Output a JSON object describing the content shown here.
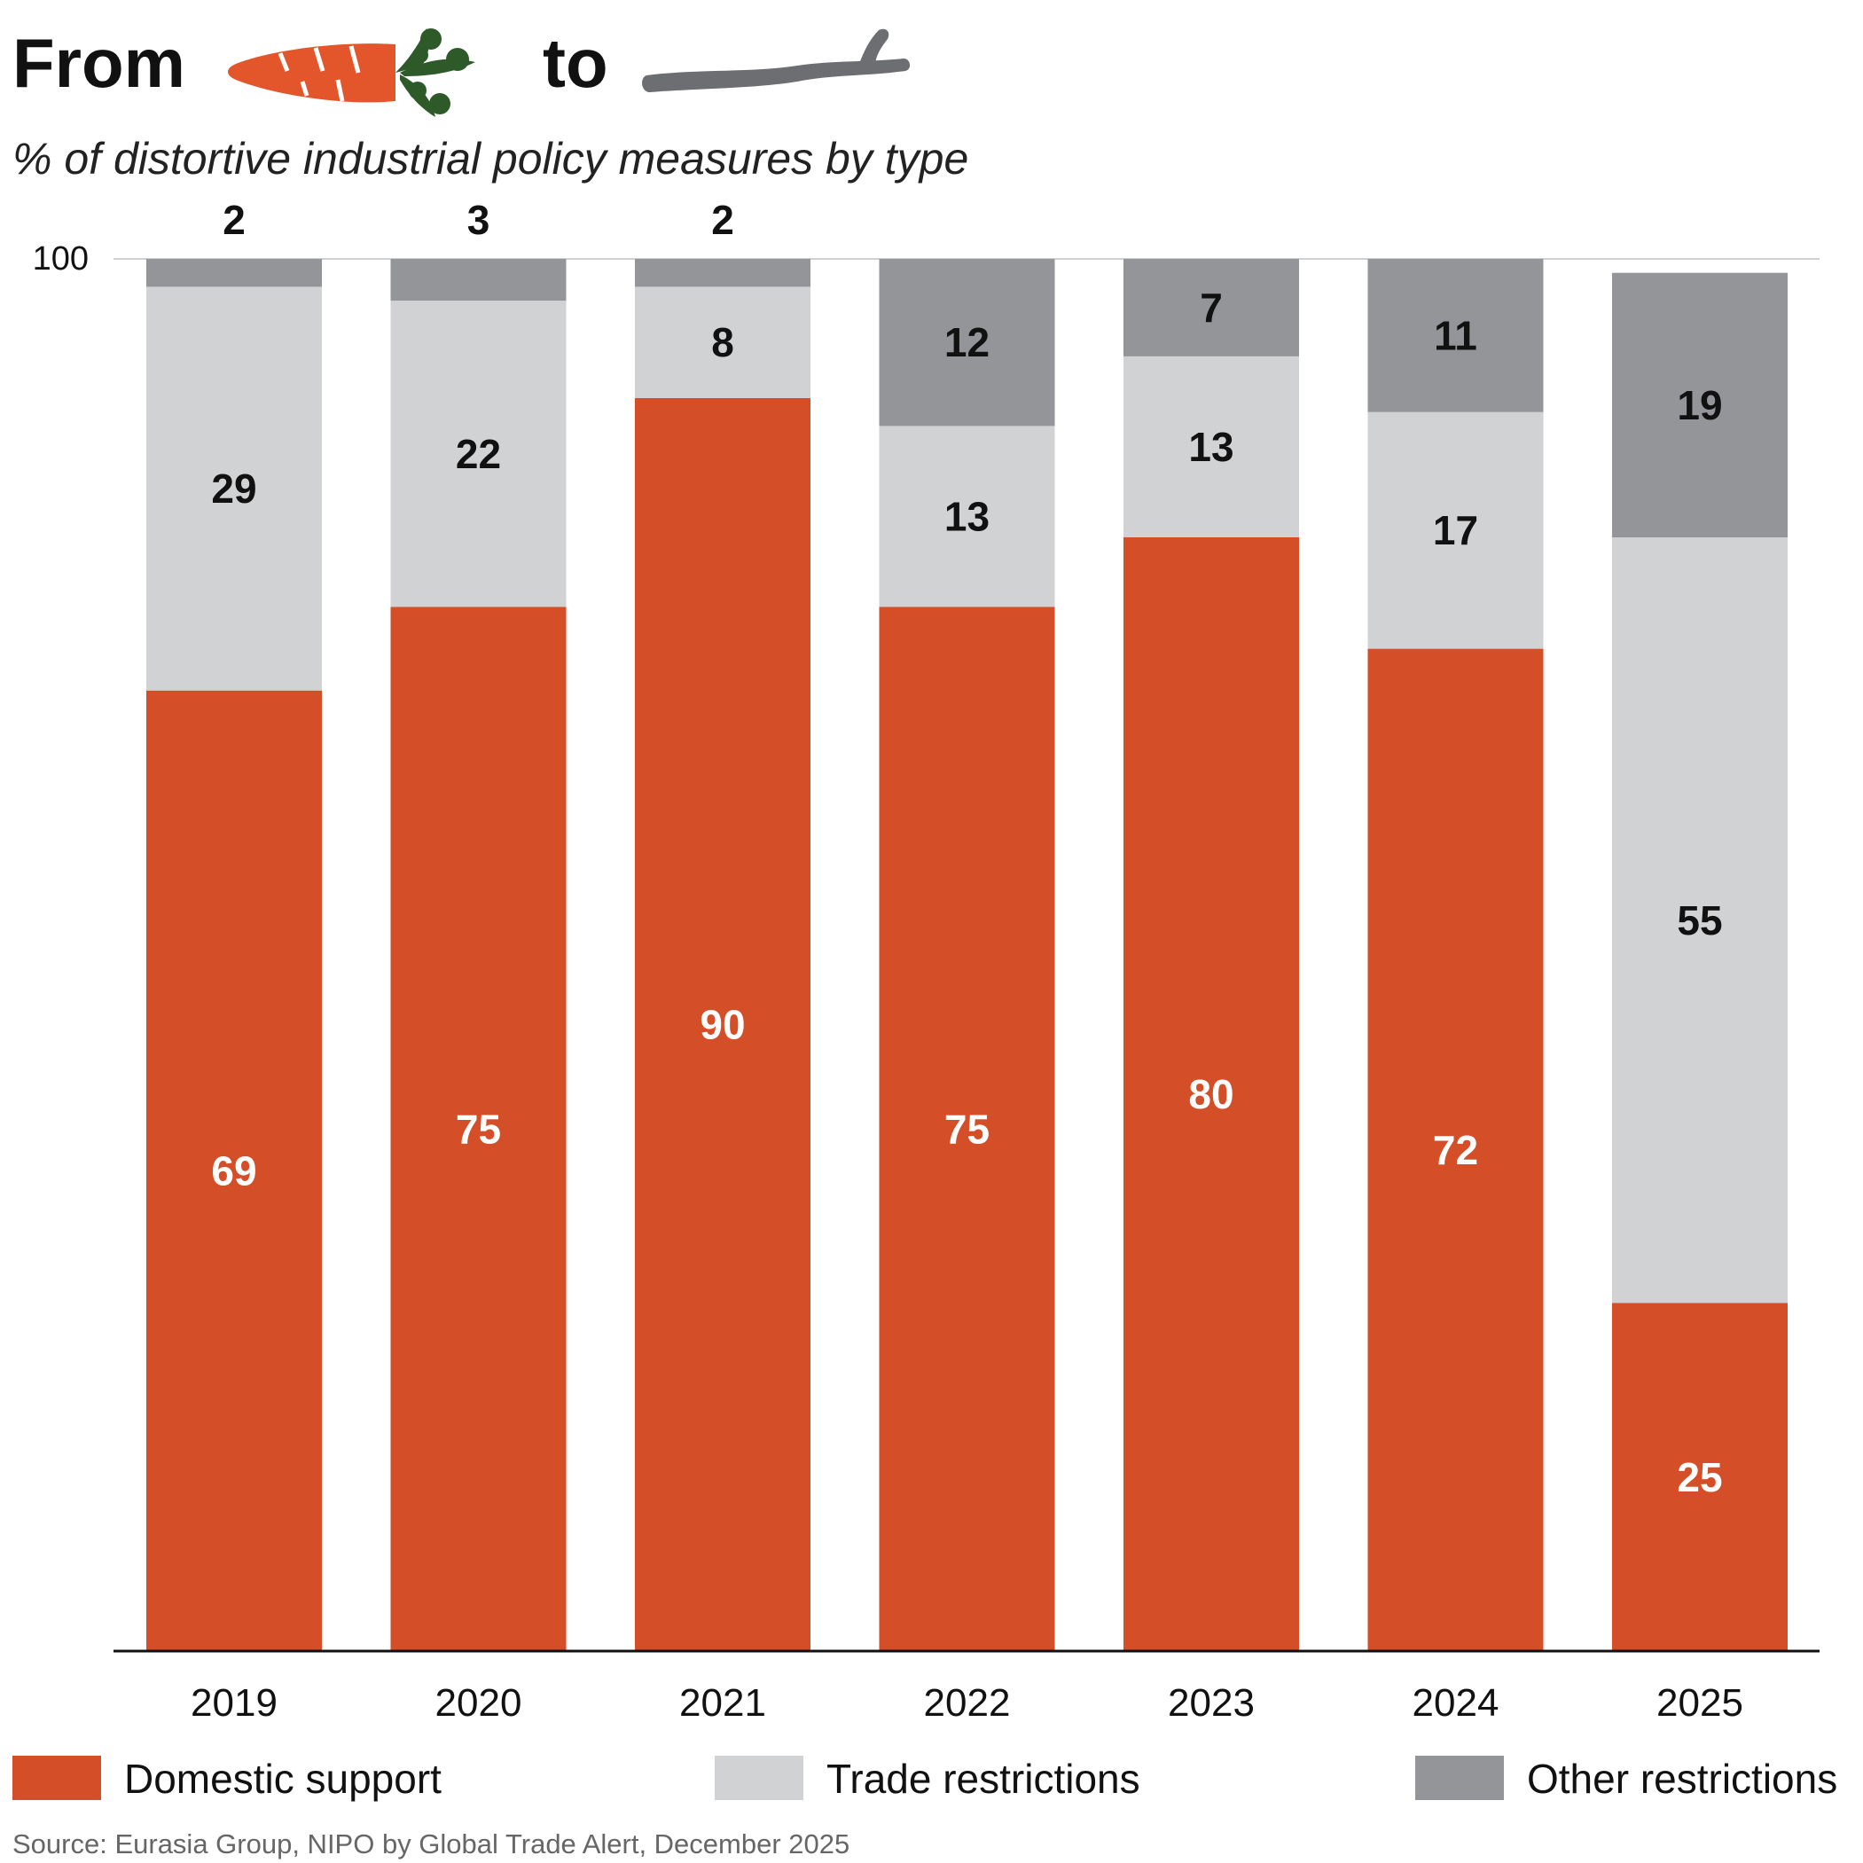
{
  "title": {
    "from": "From",
    "to": "to",
    "carrot_icon": "carrot-icon",
    "stick_icon": "stick-icon"
  },
  "subtitle": "% of distortive industrial policy measures by type",
  "colors": {
    "domestic": "#d44e27",
    "trade": "#d1d2d4",
    "other": "#939598",
    "carrot_body": "#e3552a",
    "carrot_leaf": "#2e5a2a",
    "stick": "#6d6e71"
  },
  "chart_data": {
    "type": "bar",
    "stacked": true,
    "title": "% of distortive industrial policy measures by type",
    "categories": [
      "2019",
      "2020",
      "2021",
      "2022",
      "2023",
      "2024",
      "2025"
    ],
    "series": [
      {
        "name": "Domestic support",
        "key": "domestic",
        "values": [
          69,
          75,
          90,
          75,
          80,
          72,
          25
        ]
      },
      {
        "name": "Trade restrictions",
        "key": "trade",
        "values": [
          29,
          22,
          8,
          13,
          13,
          17,
          55
        ]
      },
      {
        "name": "Other restrictions",
        "key": "other",
        "values": [
          2,
          3,
          2,
          12,
          7,
          11,
          19
        ]
      }
    ],
    "ylim": [
      0,
      100
    ],
    "y_tick_label": "100",
    "xlabel": "",
    "ylabel": "",
    "legend_position": "bottom"
  },
  "legend": [
    {
      "label": "Domestic support",
      "key": "domestic"
    },
    {
      "label": "Trade restrictions",
      "key": "trade"
    },
    {
      "label": "Other restrictions",
      "key": "other"
    }
  ],
  "source": "Source: Eurasia Group, NIPO by Global Trade Alert, December 2025"
}
